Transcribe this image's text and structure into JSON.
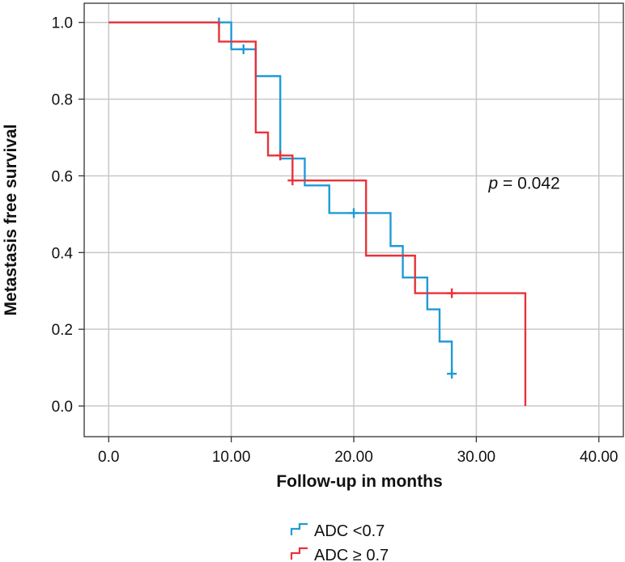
{
  "chart_data": {
    "type": "line",
    "title": "",
    "xlabel": "Follow-up in months",
    "ylabel": "Metastasis free survival",
    "xlim": [
      -2,
      42
    ],
    "ylim": [
      -0.08,
      1.05
    ],
    "xticks": [
      0,
      10,
      20,
      30,
      40
    ],
    "xtick_labels": [
      "0.0",
      "10.00",
      "20.00",
      "30.00",
      "40.00"
    ],
    "yticks": [
      0,
      0.2,
      0.4,
      0.6,
      0.8,
      1.0
    ],
    "ytick_labels": [
      "0.0",
      "0.2",
      "0.4",
      "0.6",
      "0.8",
      "1.0"
    ],
    "grid": true,
    "step": true,
    "annotation": {
      "italic": "p",
      "text": " = 0.042",
      "x": 31,
      "y": 0.6
    },
    "series": [
      {
        "name": "ADC <0.7",
        "color": "#1f9bd7",
        "steps": [
          [
            0,
            1.0
          ],
          [
            10,
            0.93
          ],
          [
            12,
            0.86
          ],
          [
            14,
            0.645
          ],
          [
            16,
            0.575
          ],
          [
            18,
            0.503
          ],
          [
            23,
            0.417
          ],
          [
            24,
            0.335
          ],
          [
            26,
            0.252
          ],
          [
            27,
            0.168
          ],
          [
            28,
            0.084
          ]
        ],
        "censored": [
          [
            9,
            1.0
          ],
          [
            11,
            0.93
          ],
          [
            20,
            0.503
          ],
          [
            28,
            0.084
          ]
        ]
      },
      {
        "name": "ADC ≥ 0.7",
        "color": "#e8333a",
        "steps": [
          [
            0,
            1.0
          ],
          [
            9,
            0.95
          ],
          [
            12,
            0.713
          ],
          [
            13,
            0.653
          ],
          [
            15,
            0.588
          ],
          [
            21,
            0.392
          ],
          [
            25,
            0.294
          ],
          [
            34,
            0.0
          ]
        ],
        "censored": [
          [
            14,
            0.653
          ],
          [
            15,
            0.588
          ],
          [
            28,
            0.294
          ]
        ]
      }
    ],
    "legend_position": "bottom"
  }
}
